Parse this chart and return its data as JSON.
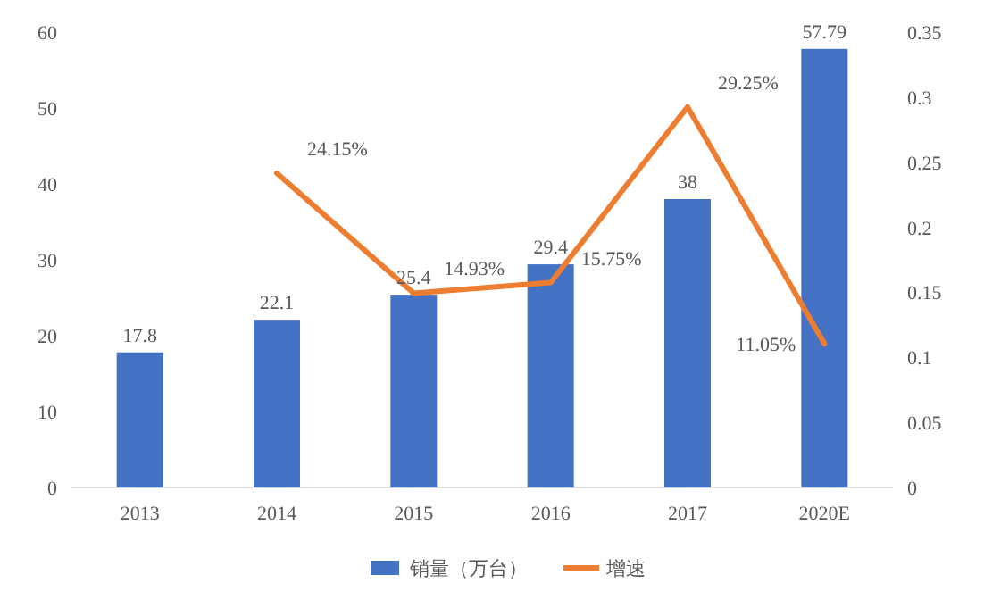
{
  "chart_data": {
    "type": "bar",
    "categories": [
      "2013",
      "2014",
      "2015",
      "2016",
      "2017",
      "2020E"
    ],
    "series": [
      {
        "name": "销量（万台）",
        "color": "#4472c4",
        "values": [
          17.8,
          22.1,
          25.4,
          29.4,
          38,
          57.79
        ],
        "value_labels": [
          "17.8",
          "22.1",
          "25.4",
          "29.4",
          "38",
          "57.79"
        ]
      },
      {
        "name": "增速",
        "type": "line",
        "axis": "y2",
        "color": "#ed7d31",
        "values": [
          null,
          0.2415,
          0.1493,
          0.1575,
          0.2925,
          0.1105
        ],
        "value_labels": [
          null,
          "24.15%",
          "14.93%",
          "15.75%",
          "29.25%",
          "11.05%"
        ]
      }
    ],
    "ylim": [
      0,
      60
    ],
    "yticks": [
      0,
      10,
      20,
      30,
      40,
      50,
      60
    ],
    "y2lim": [
      0,
      0.35
    ],
    "y2ticks": [
      0,
      0.05,
      0.1,
      0.15,
      0.2,
      0.25,
      0.3,
      0.35
    ],
    "grid": false,
    "legend": "bottom",
    "line_style": "solid"
  }
}
